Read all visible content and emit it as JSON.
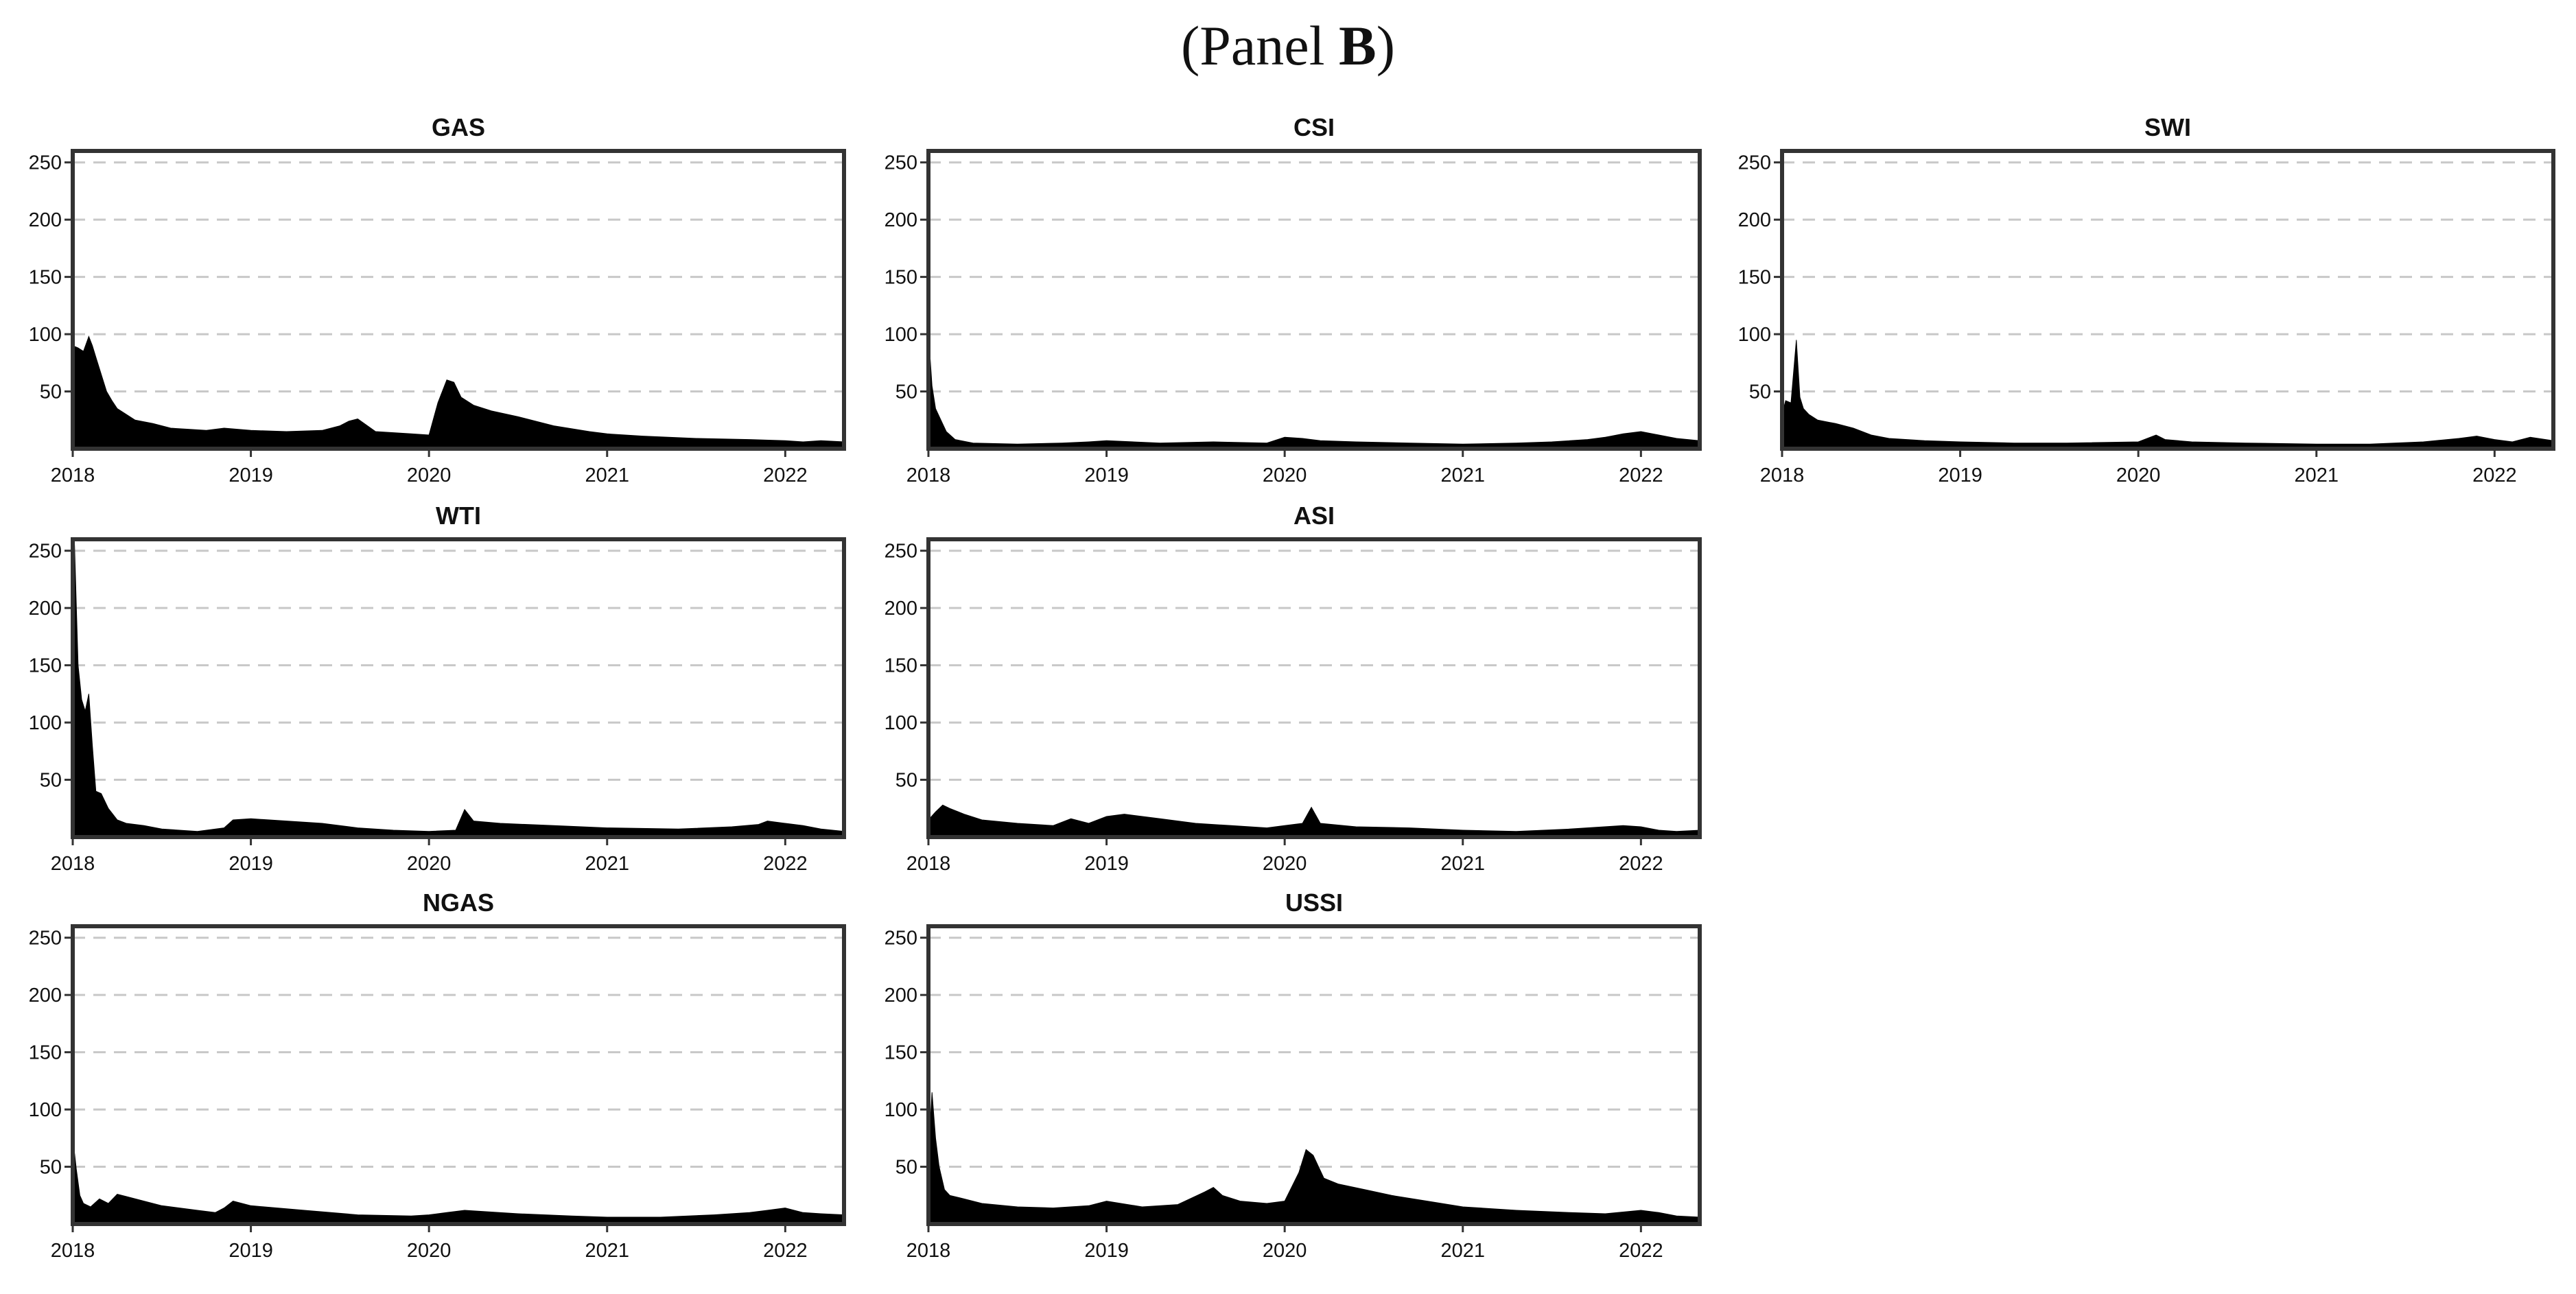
{
  "title": {
    "prefix": "(Panel ",
    "bold": "B",
    "suffix": ")"
  },
  "chart_data": [
    {
      "type": "area",
      "title": "GAS",
      "xlim": [
        2018.0,
        2022.33
      ],
      "ylim": [
        0,
        260
      ],
      "yticks": [
        50,
        100,
        150,
        200,
        250
      ],
      "xticks": [
        2018,
        2019,
        2020,
        2021,
        2022
      ],
      "x": [
        2018.0,
        2018.03,
        2018.06,
        2018.09,
        2018.11,
        2018.13,
        2018.16,
        2018.19,
        2018.22,
        2018.25,
        2018.3,
        2018.35,
        2018.45,
        2018.55,
        2018.65,
        2018.75,
        2018.85,
        2019.0,
        2019.2,
        2019.4,
        2019.5,
        2019.55,
        2019.6,
        2019.7,
        2019.8,
        2019.9,
        2020.0,
        2020.05,
        2020.1,
        2020.14,
        2020.18,
        2020.25,
        2020.35,
        2020.5,
        2020.7,
        2020.9,
        2021.0,
        2021.2,
        2021.5,
        2021.8,
        2022.0,
        2022.1,
        2022.2,
        2022.33
      ],
      "y": [
        90,
        88,
        85,
        98,
        90,
        80,
        65,
        50,
        42,
        35,
        30,
        25,
        22,
        18,
        17,
        16,
        18,
        16,
        15,
        16,
        20,
        24,
        26,
        15,
        14,
        13,
        12,
        40,
        60,
        58,
        45,
        38,
        33,
        28,
        20,
        15,
        13,
        11,
        9,
        8,
        7,
        6,
        7,
        6
      ]
    },
    {
      "type": "area",
      "title": "CSI",
      "xlim": [
        2018.0,
        2022.33
      ],
      "ylim": [
        0,
        260
      ],
      "yticks": [
        50,
        100,
        150,
        200,
        250
      ],
      "xticks": [
        2018,
        2019,
        2020,
        2021,
        2022
      ],
      "x": [
        2018.0,
        2018.01,
        2018.02,
        2018.04,
        2018.07,
        2018.1,
        2018.15,
        2018.25,
        2018.5,
        2018.75,
        2018.9,
        2019.0,
        2019.3,
        2019.6,
        2019.9,
        2020.0,
        2020.1,
        2020.2,
        2020.4,
        2020.7,
        2021.0,
        2021.3,
        2021.5,
        2021.7,
        2021.8,
        2021.9,
        2022.0,
        2022.1,
        2022.2,
        2022.33
      ],
      "y": [
        45,
        78,
        55,
        35,
        25,
        15,
        8,
        5,
        4,
        5,
        6,
        7,
        5,
        6,
        5,
        10,
        9,
        7,
        6,
        5,
        4,
        5,
        6,
        8,
        10,
        13,
        15,
        12,
        9,
        7
      ]
    },
    {
      "type": "area",
      "title": "SWI",
      "xlim": [
        2018.0,
        2022.33
      ],
      "ylim": [
        0,
        260
      ],
      "yticks": [
        50,
        100,
        150,
        200,
        250
      ],
      "xticks": [
        2018,
        2019,
        2020,
        2021,
        2022
      ],
      "x": [
        2018.0,
        2018.02,
        2018.05,
        2018.08,
        2018.1,
        2018.12,
        2018.15,
        2018.2,
        2018.3,
        2018.4,
        2018.5,
        2018.6,
        2018.8,
        2019.0,
        2019.3,
        2019.6,
        2020.0,
        2020.1,
        2020.15,
        2020.3,
        2020.6,
        2021.0,
        2021.3,
        2021.6,
        2021.8,
        2021.9,
        2022.0,
        2022.1,
        2022.2,
        2022.33
      ],
      "y": [
        30,
        42,
        40,
        95,
        45,
        35,
        30,
        25,
        22,
        18,
        12,
        9,
        7,
        6,
        5,
        5,
        6,
        12,
        8,
        6,
        5,
        4,
        4,
        6,
        9,
        11,
        8,
        6,
        10,
        7
      ]
    },
    {
      "type": "area",
      "title": "WTI",
      "xlim": [
        2018.0,
        2022.33
      ],
      "ylim": [
        0,
        260
      ],
      "yticks": [
        50,
        100,
        150,
        200,
        250
      ],
      "xticks": [
        2018,
        2019,
        2020,
        2021,
        2022
      ],
      "x": [
        2018.0,
        2018.01,
        2018.03,
        2018.05,
        2018.07,
        2018.09,
        2018.11,
        2018.13,
        2018.16,
        2018.2,
        2018.25,
        2018.3,
        2018.4,
        2018.5,
        2018.7,
        2018.85,
        2018.9,
        2019.0,
        2019.2,
        2019.4,
        2019.6,
        2019.8,
        2020.0,
        2020.15,
        2020.2,
        2020.25,
        2020.4,
        2020.7,
        2021.0,
        2021.4,
        2021.7,
        2021.85,
        2021.9,
        2022.0,
        2022.1,
        2022.2,
        2022.33
      ],
      "y": [
        180,
        255,
        150,
        120,
        110,
        125,
        80,
        40,
        38,
        25,
        15,
        12,
        10,
        7,
        5,
        8,
        15,
        16,
        14,
        12,
        8,
        6,
        5,
        6,
        24,
        14,
        12,
        10,
        8,
        7,
        9,
        11,
        14,
        12,
        10,
        7,
        5
      ]
    },
    {
      "type": "area",
      "title": "ASI",
      "xlim": [
        2018.0,
        2022.33
      ],
      "ylim": [
        0,
        260
      ],
      "yticks": [
        50,
        100,
        150,
        200,
        250
      ],
      "xticks": [
        2018,
        2019,
        2020,
        2021,
        2022
      ],
      "x": [
        2018.0,
        2018.04,
        2018.08,
        2018.12,
        2018.2,
        2018.3,
        2018.5,
        2018.7,
        2018.8,
        2018.9,
        2019.0,
        2019.1,
        2019.3,
        2019.5,
        2019.7,
        2019.9,
        2020.0,
        2020.1,
        2020.15,
        2020.2,
        2020.4,
        2020.7,
        2021.0,
        2021.3,
        2021.6,
        2021.9,
        2022.0,
        2022.1,
        2022.2,
        2022.33
      ],
      "y": [
        15,
        22,
        28,
        25,
        20,
        15,
        12,
        10,
        16,
        12,
        18,
        20,
        16,
        12,
        10,
        8,
        10,
        12,
        26,
        12,
        9,
        8,
        6,
        5,
        7,
        10,
        9,
        6,
        5,
        6
      ]
    },
    {
      "type": "area",
      "title": "NGAS",
      "xlim": [
        2018.0,
        2022.33
      ],
      "ylim": [
        0,
        260
      ],
      "yticks": [
        50,
        100,
        150,
        200,
        250
      ],
      "xticks": [
        2018,
        2019,
        2020,
        2021,
        2022
      ],
      "x": [
        2018.0,
        2018.01,
        2018.02,
        2018.04,
        2018.06,
        2018.1,
        2018.15,
        2018.2,
        2018.25,
        2018.3,
        2018.4,
        2018.5,
        2018.7,
        2018.8,
        2018.85,
        2018.9,
        2019.0,
        2019.3,
        2019.6,
        2019.9,
        2020.0,
        2020.1,
        2020.2,
        2020.5,
        2020.8,
        2021.0,
        2021.3,
        2021.6,
        2021.8,
        2021.9,
        2022.0,
        2022.1,
        2022.2,
        2022.33
      ],
      "y": [
        50,
        62,
        48,
        25,
        18,
        15,
        22,
        18,
        26,
        24,
        20,
        16,
        12,
        10,
        14,
        20,
        16,
        12,
        8,
        7,
        8,
        10,
        12,
        9,
        7,
        6,
        6,
        8,
        10,
        12,
        14,
        10,
        9,
        8
      ]
    },
    {
      "type": "area",
      "title": "USSI",
      "xlim": [
        2018.0,
        2022.33
      ],
      "ylim": [
        0,
        260
      ],
      "yticks": [
        50,
        100,
        150,
        200,
        250
      ],
      "xticks": [
        2018,
        2019,
        2020,
        2021,
        2022
      ],
      "x": [
        2018.0,
        2018.02,
        2018.04,
        2018.06,
        2018.09,
        2018.12,
        2018.2,
        2018.3,
        2018.5,
        2018.7,
        2018.9,
        2019.0,
        2019.2,
        2019.4,
        2019.55,
        2019.6,
        2019.65,
        2019.75,
        2019.9,
        2020.0,
        2020.08,
        2020.12,
        2020.16,
        2020.22,
        2020.3,
        2020.45,
        2020.6,
        2020.8,
        2021.0,
        2021.3,
        2021.6,
        2021.8,
        2022.0,
        2022.1,
        2022.2,
        2022.33
      ],
      "y": [
        60,
        115,
        75,
        50,
        30,
        25,
        22,
        18,
        15,
        14,
        16,
        20,
        15,
        17,
        28,
        32,
        25,
        20,
        18,
        20,
        45,
        65,
        60,
        40,
        35,
        30,
        25,
        20,
        15,
        12,
        10,
        9,
        12,
        10,
        7,
        6
      ]
    }
  ]
}
